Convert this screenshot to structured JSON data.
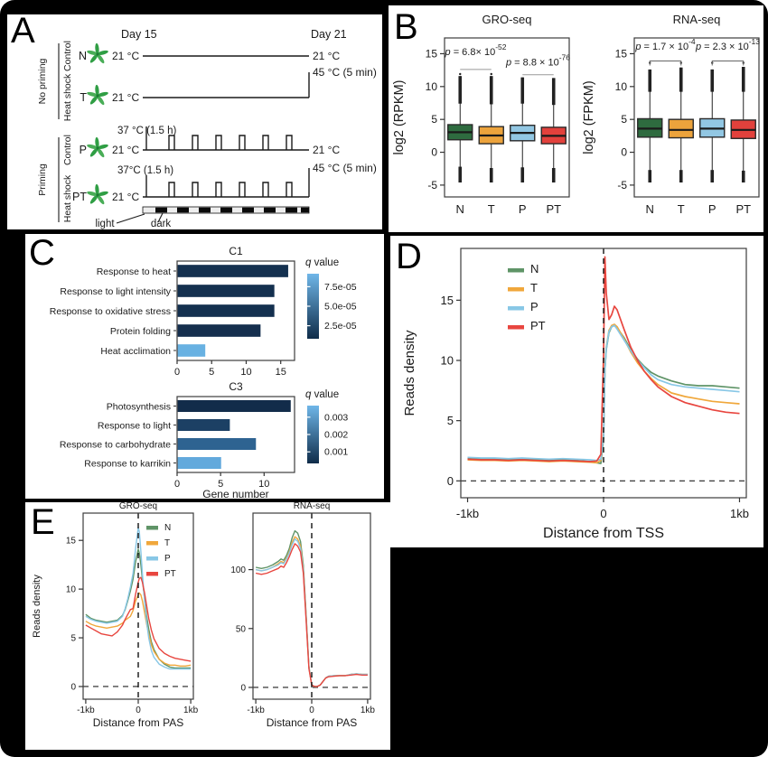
{
  "panels": {
    "a": "A",
    "b": "B",
    "c": "C",
    "d": "D",
    "e": "E"
  },
  "colors": {
    "box_N": "#2e6b3f",
    "box_T": "#eca33c",
    "box_P": "#92c7e3",
    "box_PT": "#e2413c",
    "line_N": "#5f9467",
    "line_T": "#f0a73b",
    "line_P": "#88c7e6",
    "line_PT": "#e8463f",
    "bar_navy": "#14304f",
    "bar_light": "#68b1e2"
  },
  "panel_a": {
    "label": "A",
    "day_start": "Day 15",
    "day_end": "Day 21",
    "groups": [
      {
        "name": "No priming",
        "rows": [
          "Control",
          "Heat shock"
        ]
      },
      {
        "name": "Priming",
        "rows": [
          "Control",
          "Heat shock"
        ]
      }
    ],
    "rows": [
      {
        "code": "N",
        "start": "21 °C",
        "end": "21 °C"
      },
      {
        "code": "T",
        "start": "21 °C",
        "end": "45 °C (5 min)"
      },
      {
        "code": "P",
        "start": "21 °C",
        "pulse": "37 °C (1.5 h)",
        "end": "21 °C"
      },
      {
        "code": "PT",
        "start": "21 °C",
        "pulse": "37°C (1.5 h)",
        "end": "45 °C (5 min)"
      }
    ],
    "light": "light",
    "dark": "dark"
  },
  "chart_data": [
    {
      "id": "gro-box",
      "type": "box",
      "title": "GRO-seq",
      "ylabel": "log2 (RPKM)",
      "categories": [
        "N",
        "T",
        "P",
        "PT"
      ],
      "yticks": [
        -5,
        0,
        5,
        10,
        15
      ],
      "ylim": [
        -6.8,
        17.4
      ],
      "boxes": [
        {
          "lo": -4.6,
          "lo_out": -2.2,
          "q1": 1.9,
          "med": 3.05,
          "q3": 4.2,
          "hi_out": 7.4,
          "hi": 11.6,
          "dots": [
            11.9
          ]
        },
        {
          "lo": -4.6,
          "lo_out": -2.4,
          "q1": 1.3,
          "med": 2.55,
          "q3": 3.9,
          "hi_out": 7.3,
          "hi": 11.6,
          "dots": [
            11.9
          ]
        },
        {
          "lo": -4.6,
          "lo_out": -2.3,
          "q1": 1.75,
          "med": 2.95,
          "q3": 4.1,
          "hi_out": 7.4,
          "hi": 11.4,
          "dots": []
        },
        {
          "lo": -4.6,
          "lo_out": -2.4,
          "q1": 1.3,
          "med": 2.5,
          "q3": 3.8,
          "hi_out": 7.2,
          "hi": 11.3,
          "dots": []
        }
      ],
      "annotations": [
        {
          "text": "p = 6.8× 10",
          "sup": "-52",
          "pair": [
            0,
            1
          ],
          "line_y": 12.6,
          "text_y": 14.8,
          "style": "line"
        },
        {
          "text": "p = 8.8 × 10",
          "sup": "-76",
          "pair": [
            2,
            3
          ],
          "line_y": 11.8,
          "text_y": 13.2,
          "style": "line"
        }
      ]
    },
    {
      "id": "rna-box",
      "type": "box",
      "title": "RNA-seq",
      "ylabel": "log2 (FPKM)",
      "categories": [
        "N",
        "T",
        "P",
        "PT"
      ],
      "yticks": [
        -5,
        0,
        5,
        10,
        15
      ],
      "ylim": [
        -6.8,
        17.4
      ],
      "boxes": [
        {
          "lo": -4.6,
          "lo_out": -2.7,
          "q1": 2.3,
          "med": 3.6,
          "q3": 5.1,
          "hi_out": 9.2,
          "hi": 12.6,
          "dots": [
            13.6
          ]
        },
        {
          "lo": -4.6,
          "lo_out": -2.7,
          "q1": 2.2,
          "med": 3.4,
          "q3": 5.0,
          "hi_out": 9.2,
          "hi": 12.9,
          "dots": [
            13.6
          ]
        },
        {
          "lo": -4.6,
          "lo_out": -2.7,
          "q1": 2.3,
          "med": 3.6,
          "q3": 5.1,
          "hi_out": 9.2,
          "hi": 12.6,
          "dots": [
            13.6
          ]
        },
        {
          "lo": -4.6,
          "lo_out": -2.8,
          "q1": 2.1,
          "med": 3.4,
          "q3": 4.9,
          "hi_out": 9.2,
          "hi": 13.0,
          "dots": [
            13.6
          ]
        }
      ],
      "annotations": [
        {
          "text": "p = 1.7 × 10",
          "sup": "-4",
          "pair": [
            0,
            1
          ],
          "line_y": 13.9,
          "text_y": 15.6,
          "style": "bracket"
        },
        {
          "text": "p = 2.3 × 10",
          "sup": "-13",
          "pair": [
            2,
            3
          ],
          "line_y": 13.9,
          "text_y": 15.6,
          "style": "bracket"
        }
      ]
    },
    {
      "id": "c1-bars",
      "type": "bar",
      "title": "C1",
      "xmax": 17,
      "xticks": [
        0,
        5,
        10,
        15
      ],
      "legend_title": "q value",
      "legend_labels": [
        "7.5e-05",
        "5.0e-05",
        "2.5e-05"
      ],
      "legend_gradient": [
        "#6fb6e8",
        "#0f2c49"
      ],
      "bars": [
        {
          "label": "Response to heat",
          "value": 16,
          "color": "#14304f"
        },
        {
          "label": "Response to light intensity",
          "value": 14,
          "color": "#14304f"
        },
        {
          "label": "Response to oxidative stress",
          "value": 14,
          "color": "#14304f"
        },
        {
          "label": "Protein folding",
          "value": 12,
          "color": "#152f4e"
        },
        {
          "label": "Heat acclimation",
          "value": 4,
          "color": "#68b1e2"
        }
      ]
    },
    {
      "id": "c3-bars",
      "type": "bar",
      "title": "C3",
      "xmax": 13.5,
      "xticks": [
        0,
        5,
        10
      ],
      "xlabel": "Gene number",
      "legend_title": "q value",
      "legend_labels": [
        "0.003",
        "0.002",
        "0.001"
      ],
      "legend_gradient": [
        "#6fb6e8",
        "#0f2c49"
      ],
      "bars": [
        {
          "label": "Photosynthesis",
          "value": 13,
          "color": "#122c4a"
        },
        {
          "label": "Response to light",
          "value": 6,
          "color": "#1c4064"
        },
        {
          "label": "Response to carbohydrate",
          "value": 9,
          "color": "#2e6391"
        },
        {
          "label": "Response to karrikin",
          "value": 5,
          "color": "#62a9dc"
        }
      ]
    },
    {
      "id": "tss-line",
      "type": "line",
      "ylabel": "Reads density",
      "xlabel": "Distance from TSS",
      "yticks": [
        0,
        5,
        10,
        15
      ],
      "xticks": [
        [
          -1000,
          "-1kb"
        ],
        [
          0,
          "0"
        ],
        [
          1000,
          "1kb"
        ]
      ],
      "xlim": [
        -1050,
        1050
      ],
      "ylim": [
        -1.4,
        19.3
      ],
      "x": [
        -1000,
        -900,
        -800,
        -700,
        -600,
        -500,
        -400,
        -300,
        -200,
        -100,
        -50,
        -20,
        0,
        10,
        20,
        40,
        60,
        80,
        100,
        150,
        200,
        250,
        300,
        350,
        400,
        500,
        600,
        700,
        800,
        900,
        1000
      ],
      "series": [
        {
          "name": "N",
          "color": "#5f9467",
          "values": [
            1.85,
            1.8,
            1.8,
            1.75,
            1.8,
            1.75,
            1.7,
            1.75,
            1.7,
            1.6,
            1.5,
            1.45,
            3.5,
            9.2,
            10.9,
            12.3,
            12.8,
            12.9,
            12.7,
            11.9,
            10.9,
            10.1,
            9.5,
            9.0,
            8.7,
            8.3,
            8.0,
            7.9,
            7.9,
            7.8,
            7.7
          ]
        },
        {
          "name": "T",
          "color": "#f0a73b",
          "values": [
            1.75,
            1.7,
            1.7,
            1.65,
            1.7,
            1.65,
            1.6,
            1.65,
            1.6,
            1.55,
            1.5,
            1.7,
            4.0,
            9.6,
            11.1,
            12.5,
            12.9,
            13.0,
            12.8,
            11.8,
            10.7,
            9.8,
            9.1,
            8.5,
            8.0,
            7.3,
            7.0,
            6.8,
            6.6,
            6.5,
            6.4
          ]
        },
        {
          "name": "P",
          "color": "#88c7e6",
          "values": [
            1.95,
            1.9,
            1.9,
            1.85,
            1.9,
            1.85,
            1.8,
            1.85,
            1.8,
            1.75,
            1.7,
            1.8,
            3.8,
            9.3,
            11.0,
            12.4,
            12.8,
            12.9,
            12.6,
            11.7,
            10.8,
            10.0,
            9.4,
            8.8,
            8.4,
            8.0,
            7.8,
            7.7,
            7.6,
            7.5,
            7.4
          ]
        },
        {
          "name": "PT",
          "color": "#e8463f",
          "values": [
            1.8,
            1.75,
            1.75,
            1.7,
            1.75,
            1.7,
            1.65,
            1.7,
            1.65,
            1.6,
            1.65,
            2.2,
            10.5,
            18.6,
            15.6,
            13.4,
            13.8,
            14.5,
            14.2,
            12.6,
            11.1,
            10.0,
            9.1,
            8.4,
            7.8,
            7.0,
            6.5,
            6.2,
            5.9,
            5.7,
            5.6
          ]
        }
      ]
    },
    {
      "id": "pas-gro-line",
      "type": "line",
      "title": "GRO-seq",
      "ylabel": "Reads density",
      "xlabel": "Distance from PAS",
      "yticks": [
        0,
        5,
        10,
        15
      ],
      "xticks": [
        [
          -1000,
          "-1kb"
        ],
        [
          0,
          "0"
        ],
        [
          1000,
          "1kb"
        ]
      ],
      "xlim": [
        -1050,
        1050
      ],
      "ylim": [
        -1.3,
        17.8
      ],
      "x": [
        -1000,
        -900,
        -800,
        -700,
        -600,
        -500,
        -400,
        -300,
        -250,
        -200,
        -150,
        -100,
        -50,
        0,
        20,
        50,
        80,
        120,
        160,
        200,
        250,
        300,
        400,
        500,
        600,
        700,
        800,
        900,
        1000
      ],
      "series": [
        {
          "name": "N",
          "color": "#5f9467",
          "values": [
            7.4,
            7.0,
            6.8,
            6.7,
            6.6,
            6.7,
            6.8,
            7.3,
            7.9,
            8.8,
            9.8,
            11.0,
            12.8,
            14.1,
            13.7,
            12.5,
            11.0,
            9.0,
            7.2,
            5.9,
            4.6,
            3.8,
            2.8,
            2.3,
            2.0,
            1.9,
            1.9,
            1.9,
            1.9
          ]
        },
        {
          "name": "T",
          "color": "#f0a73b",
          "values": [
            6.7,
            6.4,
            6.2,
            6.1,
            6.0,
            6.1,
            6.2,
            6.5,
            6.8,
            7.0,
            7.2,
            7.8,
            8.8,
            9.4,
            9.6,
            9.4,
            8.8,
            7.6,
            6.4,
            5.4,
            4.3,
            3.6,
            2.8,
            2.4,
            2.2,
            2.2,
            2.1,
            2.1,
            2.2
          ]
        },
        {
          "name": "P",
          "color": "#88c7e6",
          "values": [
            7.2,
            6.9,
            6.7,
            6.6,
            6.5,
            6.6,
            6.7,
            7.2,
            8.0,
            9.0,
            10.2,
            11.6,
            14.2,
            16.3,
            15.9,
            13.9,
            11.6,
            8.8,
            6.6,
            5.0,
            3.7,
            3.0,
            2.3,
            2.0,
            1.8,
            1.8,
            1.8,
            1.8,
            1.8
          ]
        },
        {
          "name": "PT",
          "color": "#e8463f",
          "values": [
            6.3,
            6.0,
            5.7,
            5.4,
            5.3,
            5.2,
            5.6,
            6.3,
            6.9,
            7.4,
            7.9,
            8.0,
            9.5,
            10.7,
            11.1,
            11.2,
            10.7,
            9.6,
            8.3,
            7.0,
            5.8,
            4.9,
            3.9,
            3.4,
            3.1,
            2.9,
            2.8,
            2.7,
            2.6
          ]
        }
      ]
    },
    {
      "id": "pas-rna-line",
      "type": "line",
      "title": "RNA-seq",
      "xlabel": "Distance from PAS",
      "yticks": [
        0,
        50,
        100
      ],
      "xticks": [
        [
          -1000,
          "-1kb"
        ],
        [
          0,
          "0"
        ],
        [
          1000,
          "1kb"
        ]
      ],
      "xlim": [
        -1050,
        1050
      ],
      "ylim": [
        -10,
        148
      ],
      "x": [
        -1000,
        -900,
        -800,
        -700,
        -600,
        -550,
        -500,
        -450,
        -400,
        -350,
        -300,
        -250,
        -200,
        -150,
        -100,
        -50,
        0,
        50,
        100,
        150,
        200,
        250,
        300,
        400,
        500,
        600,
        700,
        800,
        900,
        1000
      ],
      "series": [
        {
          "name": "N",
          "color": "#5f9467",
          "values": [
            102,
            101,
            102,
            104,
            107,
            109,
            108,
            112,
            118,
            127,
            133,
            131,
            124,
            104,
            62,
            18,
            2,
            0.8,
            0.8,
            2,
            5,
            8,
            9.5,
            10,
            10,
            10,
            11,
            11.5,
            11,
            11
          ]
        },
        {
          "name": "T",
          "color": "#f0a73b",
          "values": [
            100,
            99,
            100,
            102,
            105,
            107,
            106,
            110,
            115,
            123,
            128,
            126,
            120,
            101,
            60,
            17,
            2,
            0.8,
            0.8,
            2,
            5,
            8,
            9.5,
            10,
            10,
            10,
            11,
            11.5,
            11,
            11
          ]
        },
        {
          "name": "P",
          "color": "#88c7e6",
          "values": [
            100,
            99,
            100,
            102,
            104,
            106,
            105,
            109,
            114,
            121,
            126,
            124,
            118,
            100,
            59,
            17,
            2,
            0.8,
            0.8,
            2,
            5,
            8,
            9.5,
            10,
            10,
            10,
            11,
            11.5,
            11,
            11
          ]
        },
        {
          "name": "PT",
          "color": "#e8463f",
          "values": [
            97,
            96,
            97,
            99,
            101,
            103,
            102,
            106,
            111,
            117,
            122,
            120,
            115,
            97,
            57,
            16,
            2,
            0.8,
            0.8,
            2,
            5,
            8,
            9,
            9.5,
            10,
            10,
            10.5,
            11,
            10.5,
            10.5
          ]
        }
      ]
    }
  ]
}
